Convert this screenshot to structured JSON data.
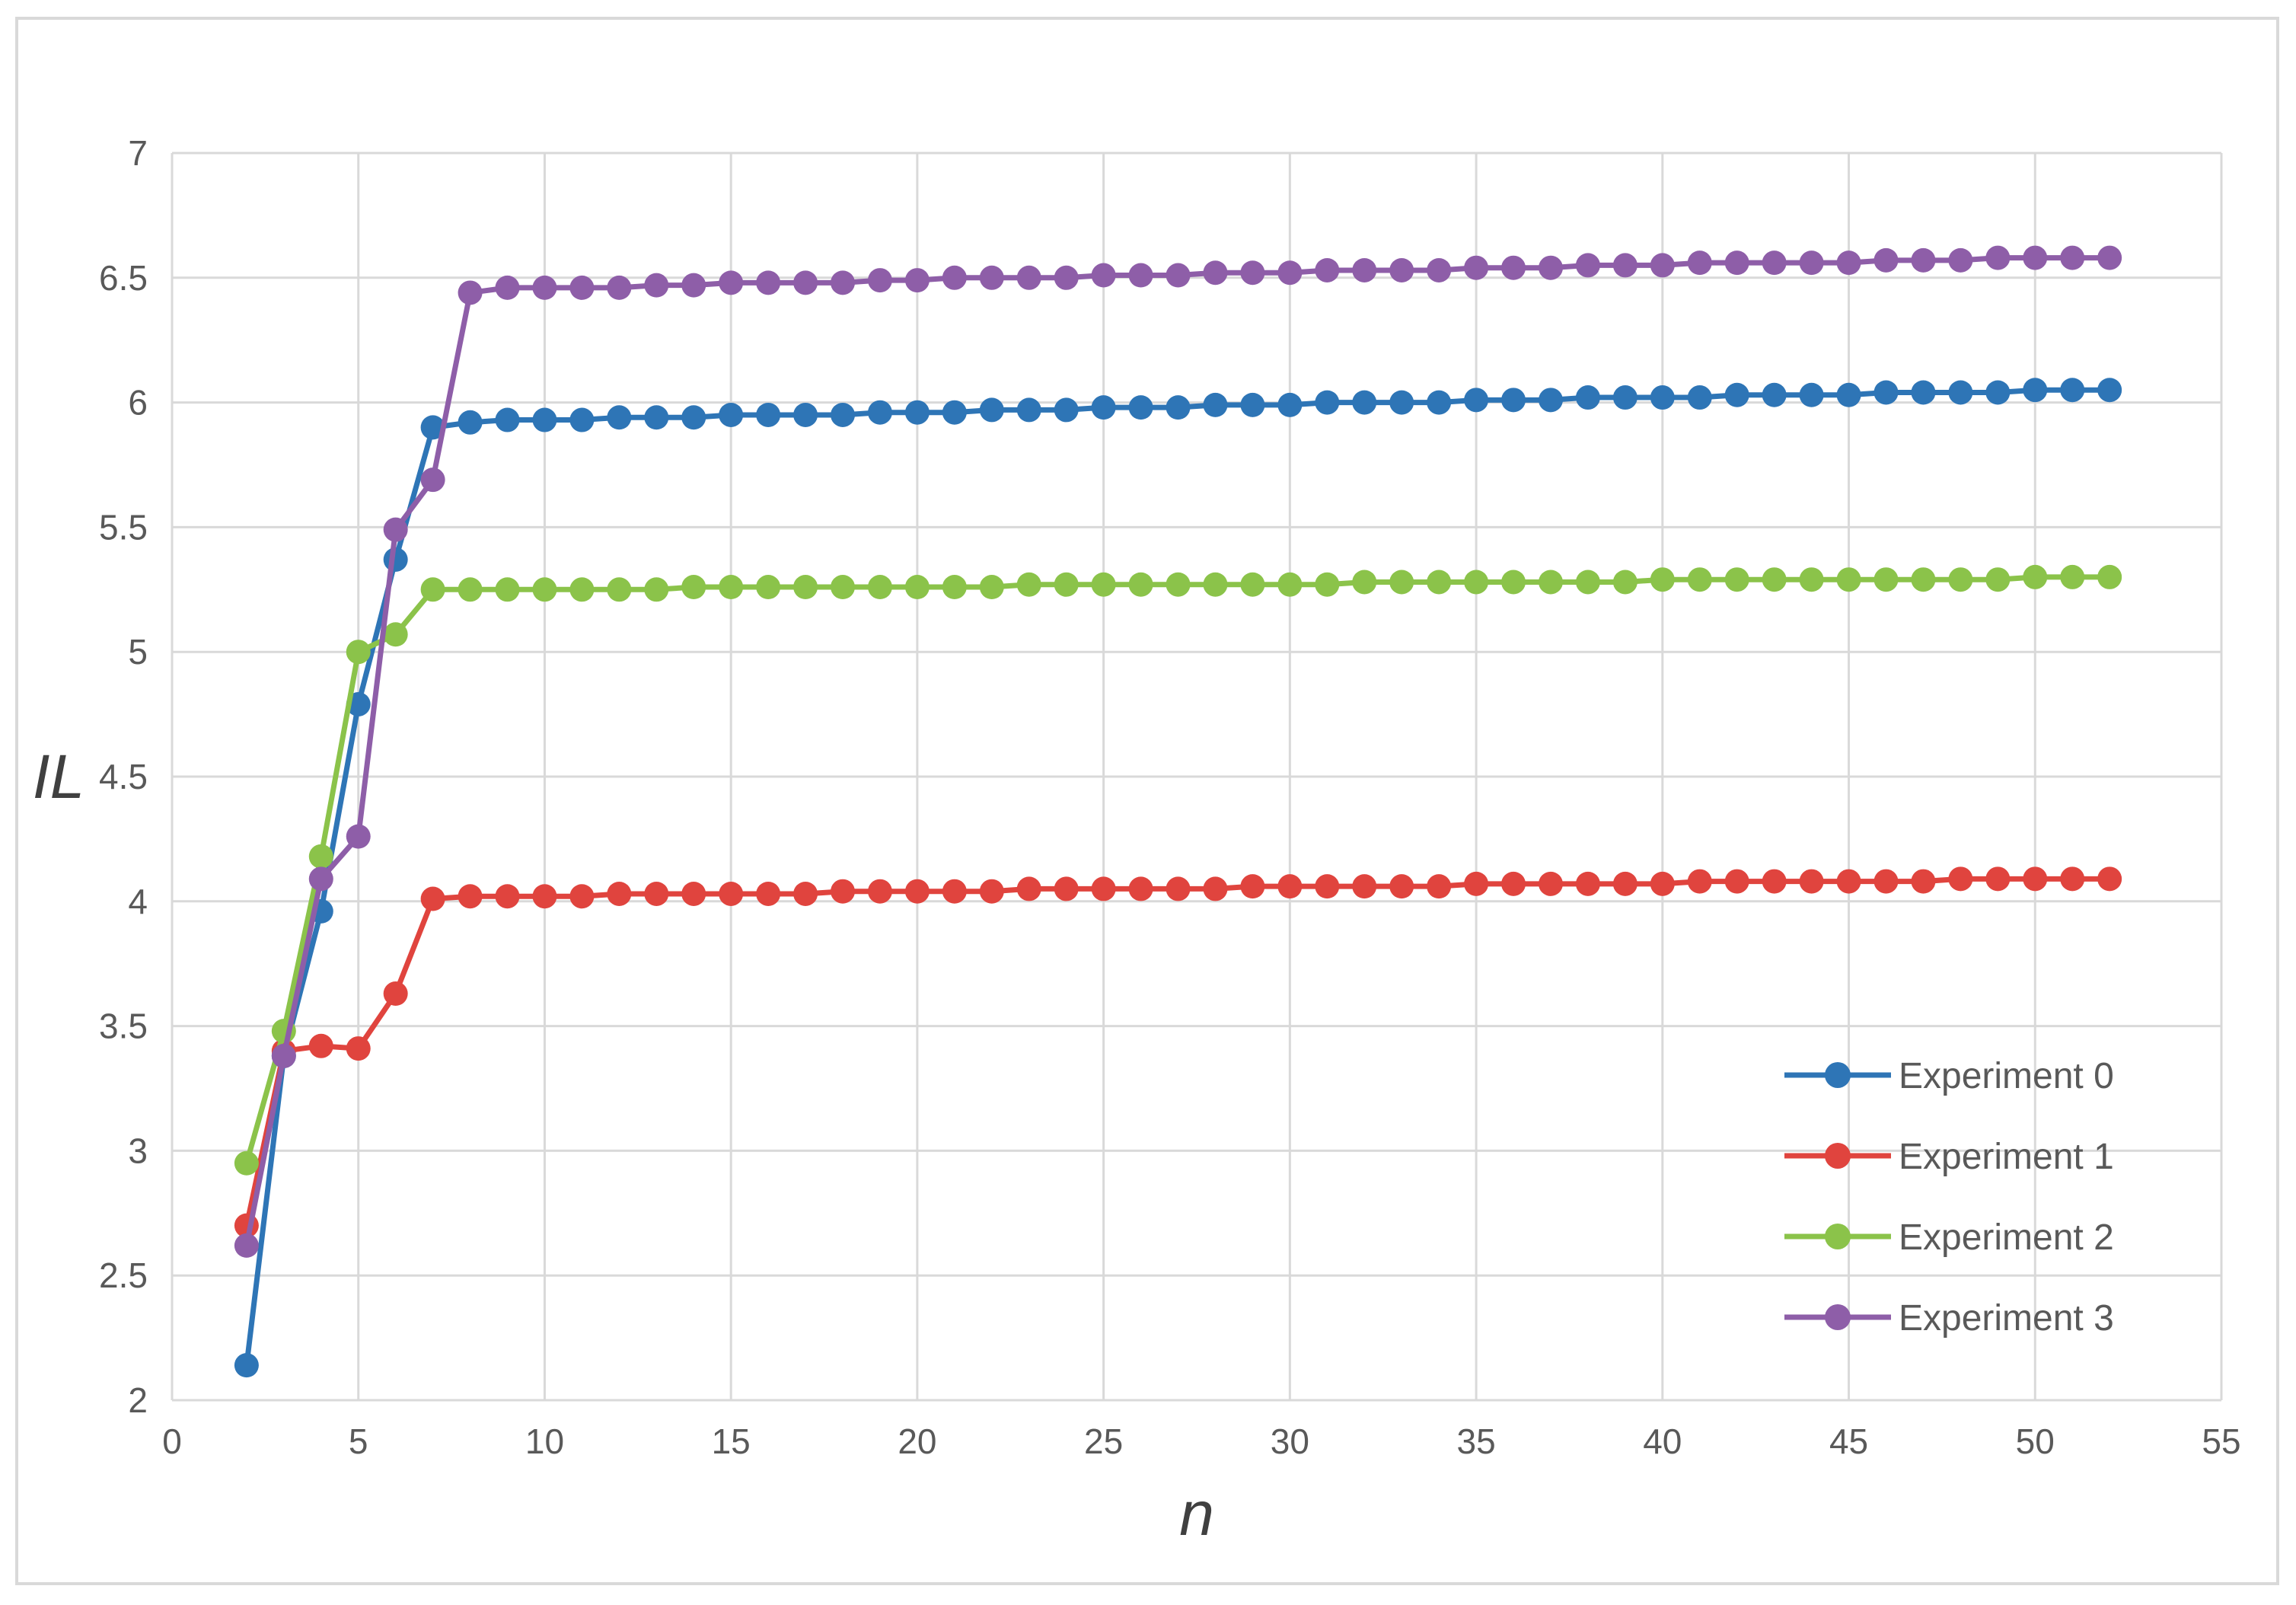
{
  "chart_data": {
    "type": "line",
    "title": "",
    "xlabel": "n",
    "ylabel": "IL",
    "xlim": [
      0,
      55
    ],
    "ylim": [
      2,
      7
    ],
    "x_ticks": [
      "0",
      "5",
      "10",
      "15",
      "20",
      "25",
      "30",
      "35",
      "40",
      "45",
      "50",
      "55"
    ],
    "y_ticks": [
      "2",
      "2.5",
      "3",
      "3.5",
      "4",
      "4.5",
      "5",
      "5.5",
      "6",
      "6.5",
      "7"
    ],
    "grid": true,
    "legend_position": "bottom-right",
    "x": [
      2,
      3,
      4,
      5,
      6,
      7,
      8,
      9,
      10,
      11,
      12,
      13,
      14,
      15,
      16,
      17,
      18,
      19,
      20,
      21,
      22,
      23,
      24,
      25,
      26,
      27,
      28,
      29,
      30,
      31,
      32,
      33,
      34,
      35,
      36,
      37,
      38,
      39,
      40,
      41,
      42,
      43,
      44,
      45,
      46,
      47,
      48,
      49,
      50,
      51,
      52
    ],
    "series": [
      {
        "name": "Experiment 0",
        "color": "#2e75b6",
        "values": [
          2.14,
          3.38,
          3.96,
          4.79,
          5.37,
          5.9,
          5.92,
          5.93,
          5.93,
          5.93,
          5.94,
          5.94,
          5.94,
          5.95,
          5.95,
          5.95,
          5.95,
          5.96,
          5.96,
          5.96,
          5.97,
          5.97,
          5.97,
          5.98,
          5.98,
          5.98,
          5.99,
          5.99,
          5.99,
          6.0,
          6.0,
          6.0,
          6.0,
          6.01,
          6.01,
          6.01,
          6.02,
          6.02,
          6.02,
          6.02,
          6.03,
          6.03,
          6.03,
          6.03,
          6.04,
          6.04,
          6.04,
          6.04,
          6.05,
          6.05,
          6.05
        ]
      },
      {
        "name": "Experiment 1",
        "color": "#e0443e",
        "values": [
          2.7,
          3.4,
          3.42,
          3.41,
          3.63,
          4.01,
          4.02,
          4.02,
          4.02,
          4.02,
          4.03,
          4.03,
          4.03,
          4.03,
          4.03,
          4.03,
          4.04,
          4.04,
          4.04,
          4.04,
          4.04,
          4.05,
          4.05,
          4.05,
          4.05,
          4.05,
          4.05,
          4.06,
          4.06,
          4.06,
          4.06,
          4.06,
          4.06,
          4.07,
          4.07,
          4.07,
          4.07,
          4.07,
          4.07,
          4.08,
          4.08,
          4.08,
          4.08,
          4.08,
          4.08,
          4.08,
          4.09,
          4.09,
          4.09,
          4.09,
          4.09
        ]
      },
      {
        "name": "Experiment 2",
        "color": "#8bc34a",
        "values": [
          2.95,
          3.48,
          4.18,
          5.0,
          5.07,
          5.25,
          5.25,
          5.25,
          5.25,
          5.25,
          5.25,
          5.25,
          5.26,
          5.26,
          5.26,
          5.26,
          5.26,
          5.26,
          5.26,
          5.26,
          5.26,
          5.27,
          5.27,
          5.27,
          5.27,
          5.27,
          5.27,
          5.27,
          5.27,
          5.27,
          5.28,
          5.28,
          5.28,
          5.28,
          5.28,
          5.28,
          5.28,
          5.28,
          5.29,
          5.29,
          5.29,
          5.29,
          5.29,
          5.29,
          5.29,
          5.29,
          5.29,
          5.29,
          5.3,
          5.3,
          5.3
        ]
      },
      {
        "name": "Experiment 3",
        "color": "#8e5ea8",
        "values": [
          2.62,
          3.38,
          4.09,
          4.26,
          5.49,
          5.69,
          6.44,
          6.46,
          6.46,
          6.46,
          6.46,
          6.47,
          6.47,
          6.48,
          6.48,
          6.48,
          6.48,
          6.49,
          6.49,
          6.5,
          6.5,
          6.5,
          6.5,
          6.51,
          6.51,
          6.51,
          6.52,
          6.52,
          6.52,
          6.53,
          6.53,
          6.53,
          6.53,
          6.54,
          6.54,
          6.54,
          6.55,
          6.55,
          6.55,
          6.56,
          6.56,
          6.56,
          6.56,
          6.56,
          6.57,
          6.57,
          6.57,
          6.58,
          6.58,
          6.58,
          6.58
        ]
      }
    ]
  }
}
